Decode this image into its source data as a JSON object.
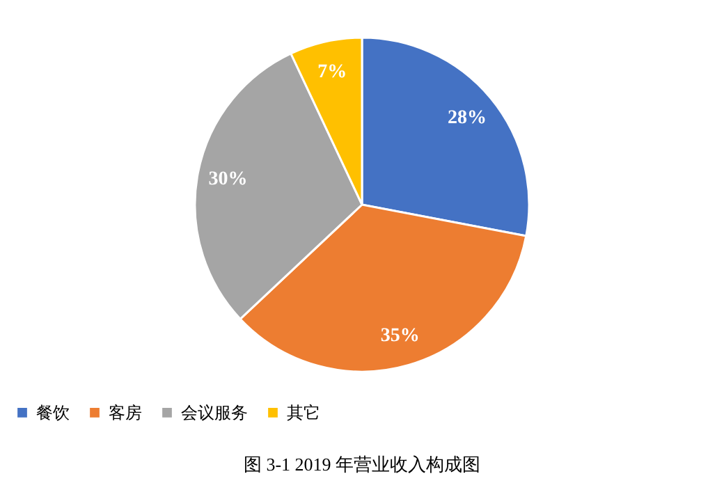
{
  "chart_data": {
    "type": "pie",
    "categories": [
      "餐饮",
      "客房",
      "会议服务",
      "其它"
    ],
    "values": [
      28,
      35,
      30,
      7
    ],
    "colors": [
      "#4472c4",
      "#ed7d31",
      "#a5a5a5",
      "#ffc000"
    ],
    "value_labels": [
      "28%",
      "35%",
      "30%",
      "7%"
    ],
    "legend": "bottom",
    "annotations": [
      "图 3-1   2019 年营业收入构成图"
    ]
  }
}
